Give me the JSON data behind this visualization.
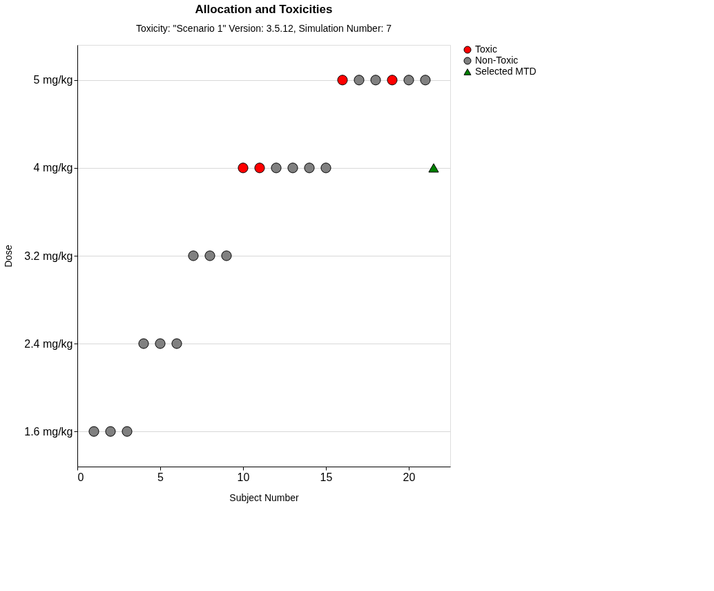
{
  "chart_data": {
    "type": "scatter",
    "orientation": "horizontal",
    "title": "Allocation and Toxicities",
    "subtitle": "Toxicity: \"Scenario 1\" Version: 3.5.12, Simulation Number: 7",
    "xlabel": "Subject Number",
    "ylabel": "Dose",
    "categories": [
      "5 mg/kg",
      "4 mg/kg",
      "3.2 mg/kg",
      "2.4 mg/kg",
      "1.6 mg/kg"
    ],
    "xlim": [
      0,
      22.5
    ],
    "xticks": [
      0,
      5,
      10,
      15,
      20
    ],
    "grid": "y",
    "legend": "top right",
    "series": [
      {
        "name": "Toxic",
        "color": "#ff0000",
        "marker": "circle",
        "values": [
          16,
          10,
          null,
          null,
          null
        ]
      },
      {
        "color": "#ff0000",
        "marker": "circle",
        "values": [
          19,
          11,
          null,
          null,
          null
        ]
      },
      {
        "name": "Non-Toxic",
        "color": "#808080",
        "marker": "circle",
        "values": [
          17,
          12,
          7,
          4,
          1
        ]
      },
      {
        "color": "#808080",
        "marker": "circle",
        "values": [
          18,
          13,
          8,
          5,
          2
        ]
      },
      {
        "color": "#808080",
        "marker": "circle",
        "values": [
          20,
          14,
          9,
          6,
          3
        ]
      },
      {
        "color": "#808080",
        "marker": "circle",
        "values": [
          21,
          15,
          null,
          null,
          null
        ]
      },
      {
        "name": "Selected MTD",
        "color": "#008000",
        "marker": "triangle",
        "values": [
          null,
          21.5,
          null,
          null,
          null
        ]
      }
    ]
  }
}
